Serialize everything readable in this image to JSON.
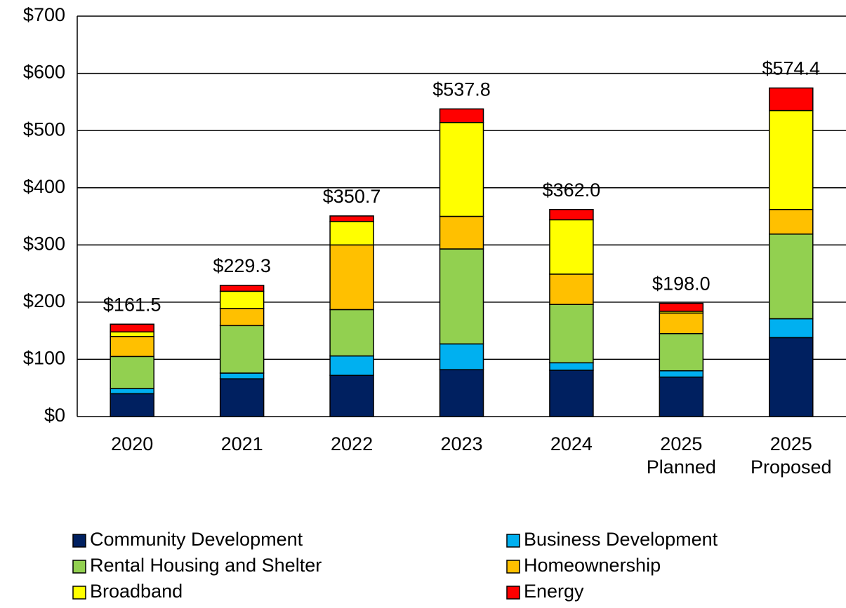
{
  "chart_data": {
    "type": "stacked_bar",
    "categories": [
      "2020",
      "2021",
      "2022",
      "2023",
      "2024",
      "2025 Planned",
      "2025 Proposed"
    ],
    "series": [
      {
        "name": "Community Development",
        "color": "#002060",
        "values": [
          40,
          66,
          72,
          82,
          81,
          69,
          138
        ]
      },
      {
        "name": "Business Development",
        "color": "#00b0f0",
        "values": [
          9,
          10,
          34,
          45,
          13,
          11,
          33
        ]
      },
      {
        "name": "Rental Housing and Shelter",
        "color": "#92d050",
        "values": [
          56,
          83,
          81,
          166,
          102,
          65,
          148
        ]
      },
      {
        "name": "Homeownership",
        "color": "#ffc000",
        "values": [
          35,
          30,
          113,
          57,
          53,
          36,
          43
        ]
      },
      {
        "name": "Broadband",
        "color": "#ffff00",
        "values": [
          8,
          30,
          41,
          164,
          95,
          3,
          173
        ]
      },
      {
        "name": "Energy",
        "color": "#ff0000",
        "values": [
          13.5,
          10.3,
          9.7,
          23.8,
          18,
          14,
          39.4
        ]
      }
    ],
    "totals": [
      161.5,
      229.3,
      350.7,
      537.8,
      362.0,
      198.0,
      574.4
    ],
    "value_labels": [
      "$161.5",
      "$229.3",
      "$350.7",
      "$537.8",
      "$362.0",
      "$198.0",
      "$574.4"
    ],
    "ylim": [
      0,
      700
    ],
    "yticks": [
      {
        "value": 0,
        "label": "$0"
      },
      {
        "value": 100,
        "label": "$100"
      },
      {
        "value": 200,
        "label": "$200"
      },
      {
        "value": 300,
        "label": "$300"
      },
      {
        "value": 400,
        "label": "$400"
      },
      {
        "value": 500,
        "label": "$500"
      },
      {
        "value": 600,
        "label": "$600"
      },
      {
        "value": 700,
        "label": "$700"
      }
    ],
    "grid": true
  }
}
